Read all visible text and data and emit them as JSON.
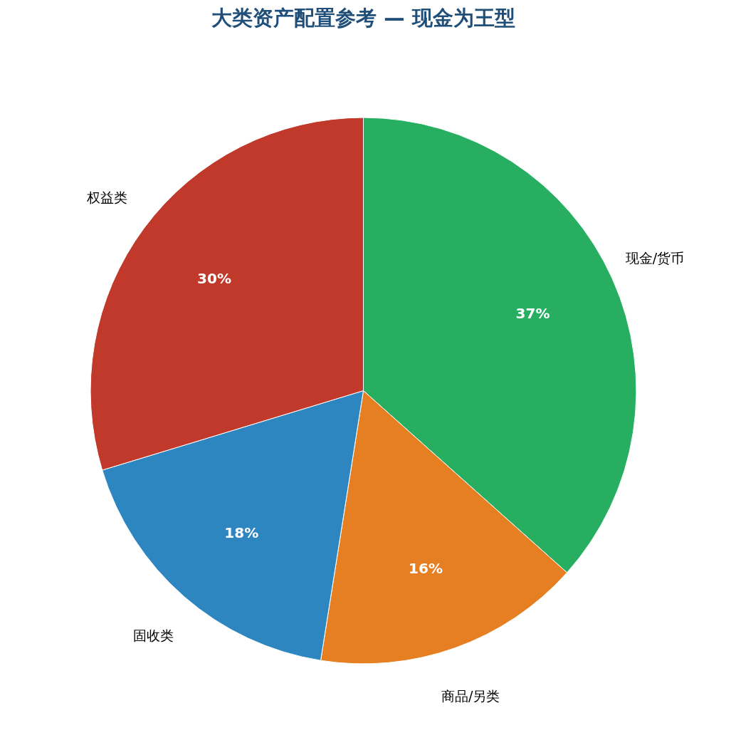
{
  "chart_data": {
    "type": "pie",
    "title": "大类资产配置参考 — 现金为王型",
    "categories": [
      "现金/货币",
      "商品/另类",
      "固收类",
      "权益类"
    ],
    "values": [
      36.6,
      15.9,
      17.8,
      29.7
    ],
    "value_labels": [
      "37%",
      "16%",
      "18%",
      "30%"
    ],
    "colors": [
      "#27ae60",
      "#e67e22",
      "#2e86c1",
      "#c0392b"
    ]
  }
}
